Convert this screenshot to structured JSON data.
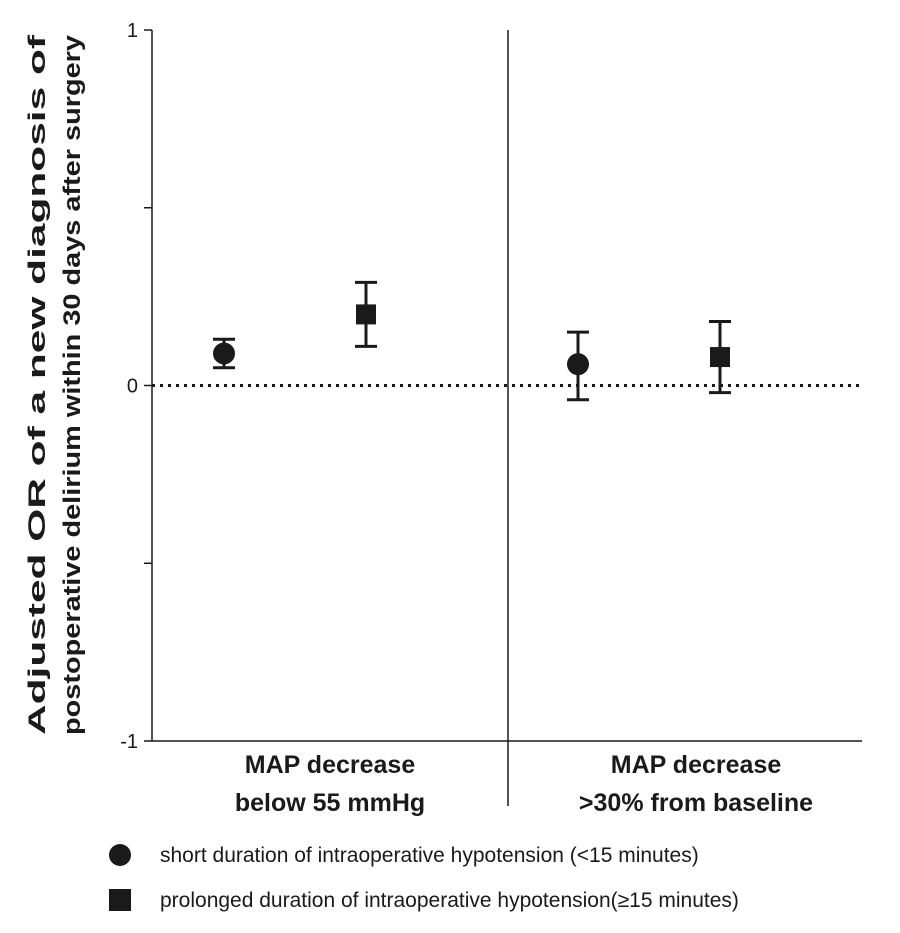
{
  "chart_data": {
    "type": "scatter",
    "title": "",
    "ylabel": "Adjusted OR of a new diagnosis of postoperative delirium within 30 days after surgery",
    "ylabel_lines": [
      "Adjusted OR of a new diagnosis of",
      "postoperative delirium within 30 days after surgery"
    ],
    "ylim": [
      -1,
      1
    ],
    "yticks": [
      1,
      0,
      -1
    ],
    "reference_line": 0,
    "grid": false,
    "categories": [
      {
        "lines": [
          "MAP decrease",
          "below 55 mmHg"
        ]
      },
      {
        "lines": [
          "MAP decrease",
          ">30% from baseline"
        ]
      }
    ],
    "series": [
      {
        "name": "short duration of intraoperative hypotension (<15 minutes)",
        "marker": "circle",
        "values": [
          0.09,
          0.06
        ],
        "lower": [
          0.05,
          -0.04
        ],
        "upper": [
          0.13,
          0.15
        ]
      },
      {
        "name": "prolonged duration of intraoperative hypotension(≥15 minutes)",
        "marker": "square",
        "values": [
          0.2,
          0.08
        ],
        "lower": [
          0.11,
          -0.02
        ],
        "upper": [
          0.29,
          0.18
        ]
      }
    ],
    "legend_position": "bottom-left",
    "colors": {
      "marker": "#1a1a1a"
    }
  }
}
